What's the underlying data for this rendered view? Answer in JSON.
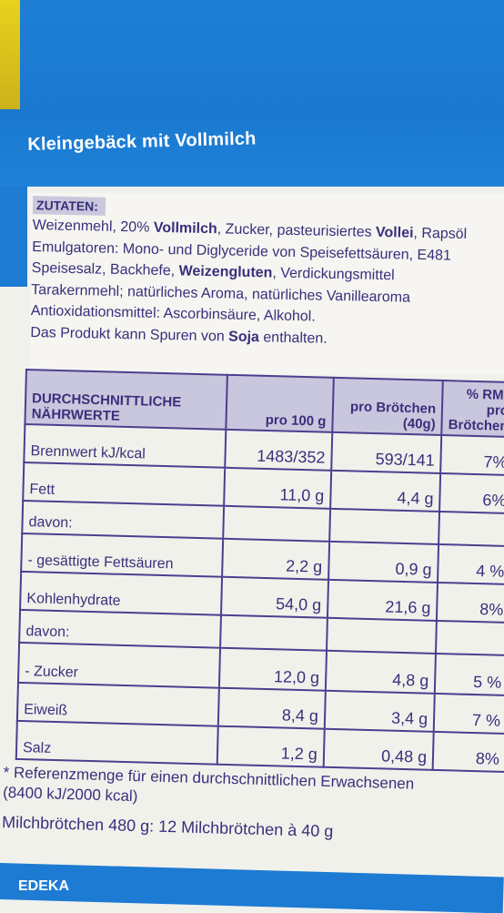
{
  "subtitle": "Kleingebäck mit Vollmilch",
  "ingredients": {
    "header": "ZUTATEN:",
    "lines": [
      [
        {
          "t": "Weizenmehl, 20% "
        },
        {
          "t": "Vollmilch",
          "b": true
        },
        {
          "t": ", Zucker, pasteurisiertes "
        },
        {
          "t": "Vollei",
          "b": true
        },
        {
          "t": ", Rapsöl"
        }
      ],
      [
        {
          "t": "Emulgatoren: Mono- und Diglyceride von Speisefettsäuren, E481"
        }
      ],
      [
        {
          "t": "Speisesalz, Backhefe, "
        },
        {
          "t": "Weizengluten",
          "b": true
        },
        {
          "t": ", Verdickungsmittel"
        }
      ],
      [
        {
          "t": "Tarakernmehl; natürliches Aroma, natürliches Vanillearoma"
        }
      ],
      [
        {
          "t": "Antioxidationsmittel: Ascorbinsäure, Alkohol."
        }
      ],
      [
        {
          "t": "Das Produkt kann Spuren von "
        },
        {
          "t": "Soja",
          "b": true
        },
        {
          "t": " enthalten."
        }
      ]
    ]
  },
  "nutrition": {
    "headers": {
      "col1": "DURCHSCHNITTLICHE NÄHRWERTE",
      "col2": "pro 100 g",
      "col3": "pro Brötchen (40g)",
      "col4": "% RM* pro Brötchen"
    },
    "rows": [
      {
        "label": "Brennwert kJ/kcal",
        "per100": "1483/352",
        "perRoll": "593/141",
        "rm": "7%"
      },
      {
        "label": "Fett",
        "per100": "11,0 g",
        "perRoll": "4,4 g",
        "rm": "6%"
      },
      {
        "label": "davon:",
        "per100": "",
        "perRoll": "",
        "rm": ""
      },
      {
        "label": "- gesättigte Fettsäuren",
        "per100": "2,2 g",
        "perRoll": "0,9 g",
        "rm": "4 %"
      },
      {
        "label": "Kohlenhydrate",
        "per100": "54,0 g",
        "perRoll": "21,6 g",
        "rm": "8%"
      },
      {
        "label": "davon:",
        "per100": "",
        "perRoll": "",
        "rm": ""
      },
      {
        "label": "- Zucker",
        "per100": "12,0 g",
        "perRoll": "4,8 g",
        "rm": "5 %"
      },
      {
        "label": "Eiweiß",
        "per100": "8,4 g",
        "perRoll": "3,4 g",
        "rm": "7 %"
      },
      {
        "label": "Salz",
        "per100": "1,2 g",
        "perRoll": "0,48 g",
        "rm": "8%"
      }
    ]
  },
  "footnote": {
    "line1": "* Referenzmenge für einen durchschnittlichen Erwachsenen",
    "line2": "(8400 kJ/2000 kcal)",
    "pack": "Milchbrötchen 480 g: 12 Milchbrötchen à 40 g"
  },
  "brand": "EDEKA"
}
